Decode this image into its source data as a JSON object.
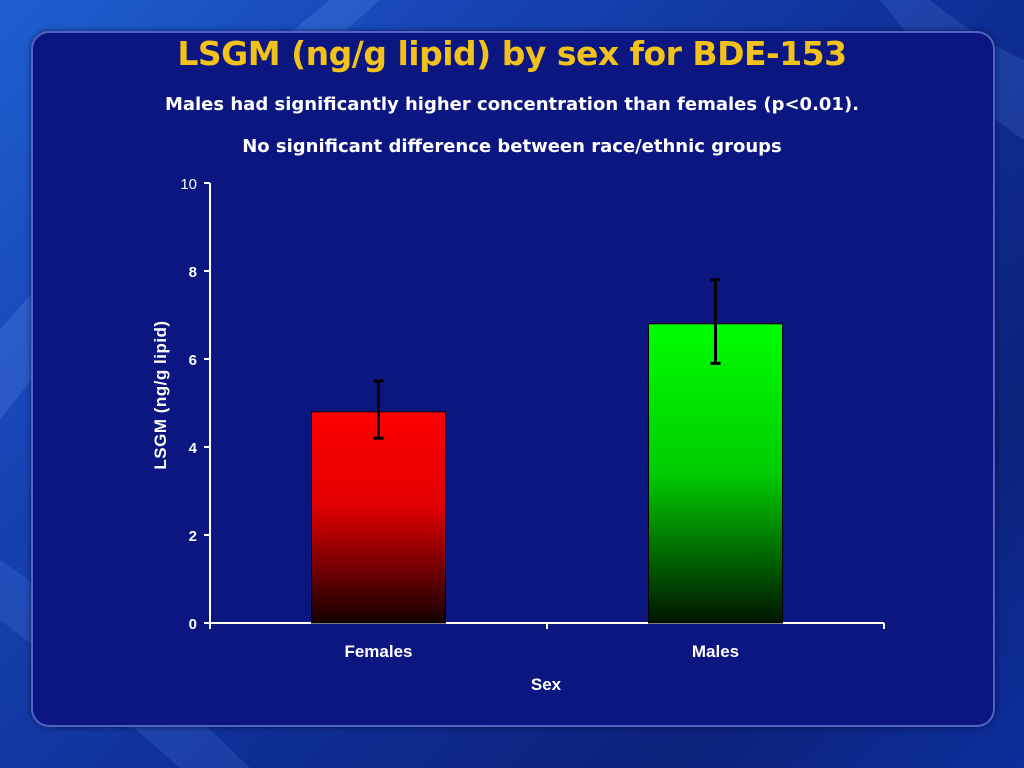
{
  "slide": {
    "title": "LSGM (ng/g lipid) by sex for BDE-153",
    "subtitle_1": "Males had significantly higher concentration than females (p<0.01).",
    "subtitle_2": "No significant difference between race/ethnic groups"
  },
  "colors": {
    "title": "#f2c21b",
    "panel": "#0b1680",
    "females_bar": "#ff0000",
    "males_bar": "#00ff00",
    "axis": "#ffffff"
  },
  "chart_data": {
    "type": "bar",
    "title": "LSGM (ng/g lipid) by sex for BDE-153",
    "categories": [
      "Females",
      "Males"
    ],
    "values": [
      4.8,
      6.8
    ],
    "error_low": [
      4.2,
      5.9
    ],
    "error_high": [
      5.5,
      7.8
    ],
    "xlabel": "Sex",
    "ylabel": "LSGM (ng/g lipid)",
    "ylim": [
      0,
      10
    ],
    "yticks": [
      "0",
      "2",
      "4",
      "6",
      "8",
      "10"
    ],
    "grid": false,
    "legend": "none"
  }
}
